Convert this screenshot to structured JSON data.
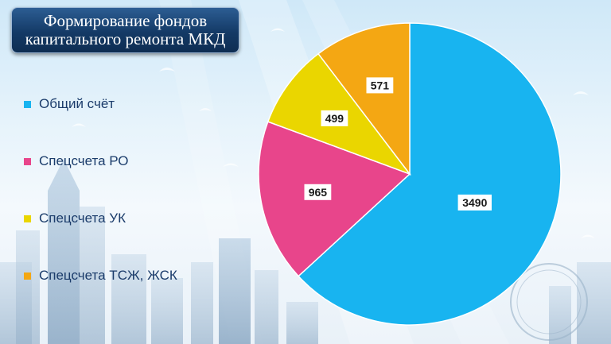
{
  "title": "Формирование фондов\nкапитального ремонта МКД",
  "chart_data": {
    "type": "pie",
    "categories": [
      "Общий счёт",
      "Спецсчета РО",
      "Спецсчета УК",
      "Спецсчета ТСЖ, ЖСК"
    ],
    "values": [
      3490,
      965,
      499,
      571
    ],
    "colors": [
      "#18b4f0",
      "#e8458b",
      "#ead600",
      "#f4a713"
    ],
    "legend_position": "left",
    "start_angle": "12 o'clock",
    "direction": "clockwise",
    "data_labels": [
      "3490",
      "965",
      "499",
      "571"
    ]
  }
}
